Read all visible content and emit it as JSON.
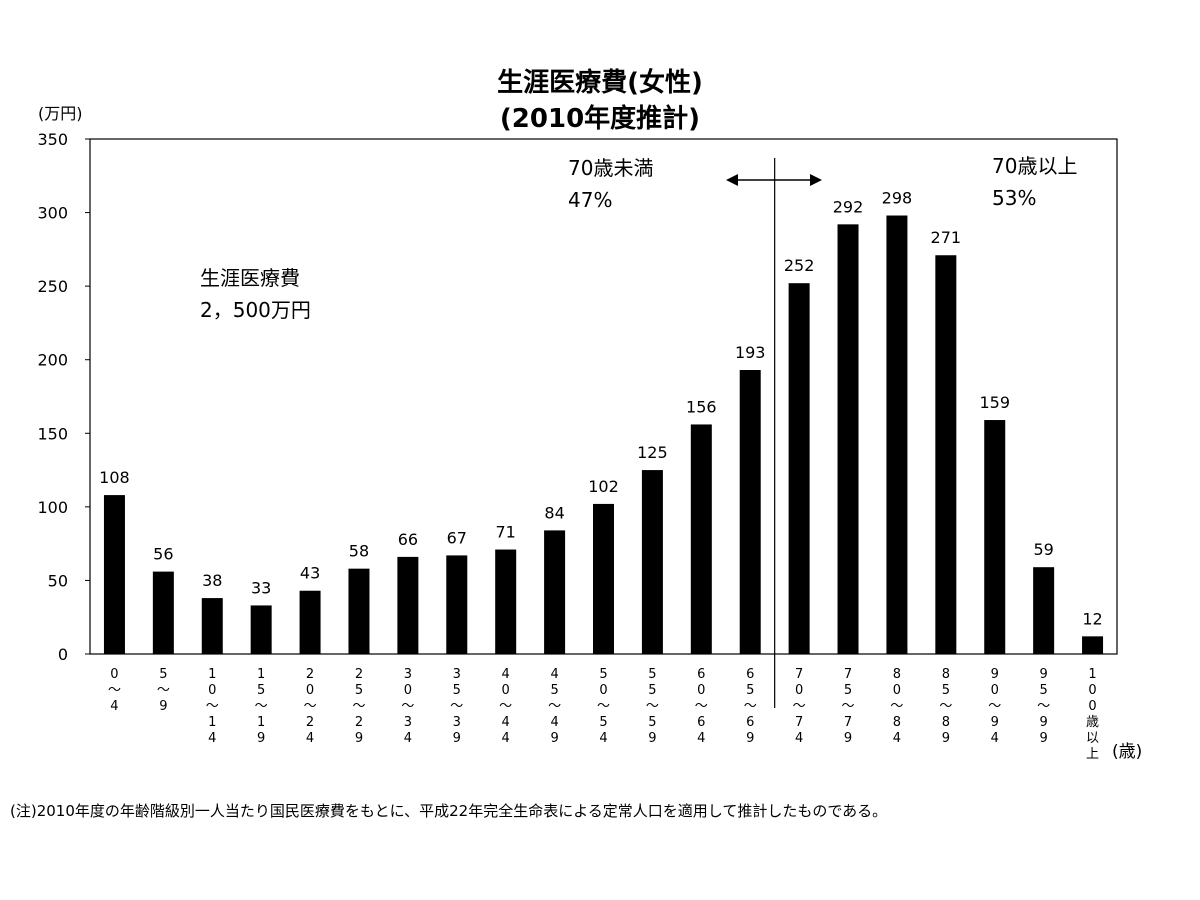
{
  "chart_data": {
    "type": "bar",
    "title_line1": "生涯医療費(女性)",
    "title_line2": "(2010年度推計)",
    "y_unit": "(万円)",
    "x_unit": "(歳)",
    "ylim": [
      0,
      350
    ],
    "y_ticks": [
      0,
      50,
      100,
      150,
      200,
      250,
      300,
      350
    ],
    "categories": [
      "0～4",
      "5～9",
      "10～14",
      "15～19",
      "20～24",
      "25～29",
      "30～34",
      "35～39",
      "40～44",
      "45～49",
      "50～54",
      "55～59",
      "60～64",
      "65～69",
      "70～74",
      "75～79",
      "80～84",
      "85～89",
      "90～94",
      "95～99",
      "100歳以上"
    ],
    "category_glyphs": [
      [
        "0",
        "～",
        "4"
      ],
      [
        "5",
        "～",
        "9"
      ],
      [
        "1",
        "0",
        "～",
        "1",
        "4"
      ],
      [
        "1",
        "5",
        "～",
        "1",
        "9"
      ],
      [
        "2",
        "0",
        "～",
        "2",
        "4"
      ],
      [
        "2",
        "5",
        "～",
        "2",
        "9"
      ],
      [
        "3",
        "0",
        "～",
        "3",
        "4"
      ],
      [
        "3",
        "5",
        "～",
        "3",
        "9"
      ],
      [
        "4",
        "0",
        "～",
        "4",
        "4"
      ],
      [
        "4",
        "5",
        "～",
        "4",
        "9"
      ],
      [
        "5",
        "0",
        "～",
        "5",
        "4"
      ],
      [
        "5",
        "5",
        "～",
        "5",
        "9"
      ],
      [
        "6",
        "0",
        "～",
        "6",
        "4"
      ],
      [
        "6",
        "5",
        "～",
        "6",
        "9"
      ],
      [
        "7",
        "0",
        "～",
        "7",
        "4"
      ],
      [
        "7",
        "5",
        "～",
        "7",
        "9"
      ],
      [
        "8",
        "0",
        "～",
        "8",
        "4"
      ],
      [
        "8",
        "5",
        "～",
        "8",
        "9"
      ],
      [
        "9",
        "0",
        "～",
        "9",
        "4"
      ],
      [
        "9",
        "5",
        "～",
        "9",
        "9"
      ],
      [
        "1",
        "0",
        "0",
        "歳",
        "以",
        "上"
      ]
    ],
    "values": [
      108,
      56,
      38,
      33,
      43,
      58,
      66,
      67,
      71,
      84,
      102,
      125,
      156,
      193,
      252,
      292,
      298,
      271,
      159,
      59,
      12
    ],
    "divider_after_category": "65～69",
    "annotations": {
      "total_label": "生涯医療費",
      "total_value": "2，500万円",
      "under70_label": "70歳未満",
      "under70_pct": "47%",
      "over70_label": "70歳以上",
      "over70_pct": "53%"
    },
    "bar_color": "#000000",
    "grid": false
  },
  "note": "(注)2010年度の年齢階級別一人当たり国民医療費をもとに、平成22年完全生命表による定常人口を適用して推計したものである。"
}
